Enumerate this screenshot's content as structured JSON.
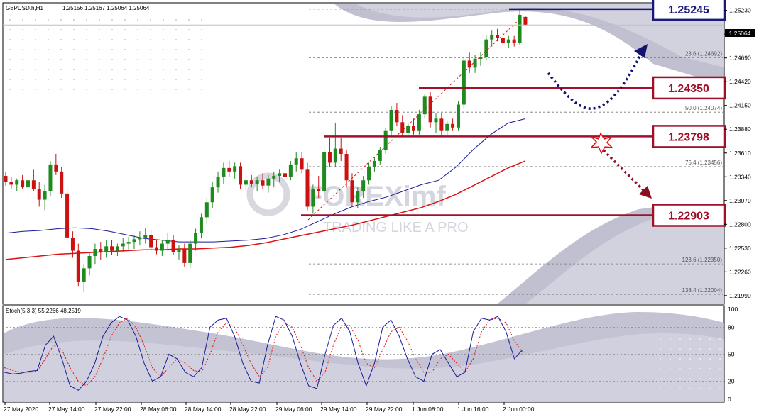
{
  "header": {
    "symbol": "GBPUSD.h,H1",
    "ohlc": "1.25156 1.25167 1.25064 1.25064"
  },
  "current_price_label": "1.25064",
  "watermark": {
    "brand": "FOREXimf",
    "slogan": "TRADING LIKE A PRO"
  },
  "levels": [
    {
      "name": "level-1-25245",
      "label": "1.25245",
      "price": 1.25245,
      "color": "#1a1a7a"
    },
    {
      "name": "level-1-24350",
      "label": "1.24350",
      "price": 1.2435,
      "color": "#a0102a"
    },
    {
      "name": "level-1-23798",
      "label": "1.23798",
      "price": 1.23798,
      "color": "#a0102a"
    },
    {
      "name": "level-1-22903",
      "label": "1.22903",
      "price": 1.22903,
      "color": "#a0102a"
    }
  ],
  "fibo": [
    {
      "label": "23.6 (1.24692)",
      "price": 1.24692
    },
    {
      "label": "50.0 (1.24074)",
      "price": 1.24074
    },
    {
      "label": "76.4 (1.23456)",
      "price": 1.23456
    },
    {
      "label": "123.6 (1.22350)",
      "price": 1.2235
    },
    {
      "label": "138.4 (1.22004)",
      "price": 1.22004
    }
  ],
  "stoch": {
    "title": "Stoch(5,3,3) 55.2266 48.2519",
    "levels": [
      "100",
      "80",
      "50",
      "20",
      "0"
    ]
  },
  "colors": {
    "bull": "#1f8a1f",
    "bear": "#cc1111",
    "ma_blue": "#1a1a9a",
    "ma_red": "#dd1111",
    "arrow_blue": "#14146e",
    "arrow_red": "#8a1020",
    "shade": "#b9b9cc"
  },
  "chart_data": {
    "type": "candlestick",
    "ylim": [
      1.219,
      1.253
    ],
    "y_ticks": [
      "1.25230",
      "1.24960",
      "1.24690",
      "1.24420",
      "1.24150",
      "1.23880",
      "1.23610",
      "1.23340",
      "1.23070",
      "1.22800",
      "1.22530",
      "1.22260",
      "1.21990"
    ],
    "x_ticks": [
      "27 May 2020",
      "27 May 14:00",
      "27 May 22:00",
      "28 May 06:00",
      "28 May 14:00",
      "28 May 22:00",
      "29 May 06:00",
      "29 May 14:00",
      "29 May 22:00",
      "1 Jun 08:00",
      "1 Jun 16:00",
      "2 Jun 00:00"
    ],
    "candles": [
      [
        1.2335,
        1.234,
        1.2324,
        1.2328
      ],
      [
        1.2328,
        1.2334,
        1.232,
        1.2325
      ],
      [
        1.2325,
        1.2332,
        1.2318,
        1.233
      ],
      [
        1.233,
        1.2336,
        1.232,
        1.2322
      ],
      [
        1.2322,
        1.2335,
        1.231,
        1.233
      ],
      [
        1.233,
        1.2342,
        1.2318,
        1.232
      ],
      [
        1.232,
        1.2328,
        1.23,
        1.2308
      ],
      [
        1.2308,
        1.2325,
        1.2296,
        1.2318
      ],
      [
        1.2318,
        1.2352,
        1.2312,
        1.2348
      ],
      [
        1.2348,
        1.236,
        1.2336,
        1.234
      ],
      [
        1.234,
        1.2345,
        1.231,
        1.2315
      ],
      [
        1.2315,
        1.2322,
        1.226,
        1.2265
      ],
      [
        1.2265,
        1.2272,
        1.2242,
        1.225
      ],
      [
        1.225,
        1.2258,
        1.221,
        1.2215
      ],
      [
        1.2215,
        1.2235,
        1.2203,
        1.223
      ],
      [
        1.223,
        1.2248,
        1.2222,
        1.2244
      ],
      [
        1.2244,
        1.2258,
        1.2235,
        1.2252
      ],
      [
        1.2252,
        1.226,
        1.224,
        1.2248
      ],
      [
        1.2248,
        1.2262,
        1.2242,
        1.2255
      ],
      [
        1.2255,
        1.2262,
        1.2245,
        1.225
      ],
      [
        1.225,
        1.2258,
        1.2244,
        1.2255
      ],
      [
        1.2255,
        1.2264,
        1.2248,
        1.2258
      ],
      [
        1.2258,
        1.2266,
        1.225,
        1.226
      ],
      [
        1.226,
        1.2268,
        1.2252,
        1.2263
      ],
      [
        1.2263,
        1.2272,
        1.2256,
        1.2265
      ],
      [
        1.2265,
        1.2276,
        1.2258,
        1.2268
      ],
      [
        1.2268,
        1.2274,
        1.225,
        1.2254
      ],
      [
        1.2254,
        1.2262,
        1.2246,
        1.225
      ],
      [
        1.225,
        1.2262,
        1.2244,
        1.2258
      ],
      [
        1.2258,
        1.227,
        1.225,
        1.2262
      ],
      [
        1.2262,
        1.2268,
        1.2245,
        1.2248
      ],
      [
        1.2248,
        1.2256,
        1.224,
        1.2252
      ],
      [
        1.2252,
        1.2258,
        1.2232,
        1.2236
      ],
      [
        1.2236,
        1.2262,
        1.223,
        1.2258
      ],
      [
        1.2258,
        1.2275,
        1.225,
        1.227
      ],
      [
        1.227,
        1.2292,
        1.2264,
        1.2288
      ],
      [
        1.2288,
        1.231,
        1.228,
        1.2305
      ],
      [
        1.2305,
        1.2328,
        1.2298,
        1.2322
      ],
      [
        1.2322,
        1.234,
        1.2316,
        1.2334
      ],
      [
        1.2334,
        1.235,
        1.2326,
        1.2344
      ],
      [
        1.2344,
        1.2352,
        1.2334,
        1.234
      ],
      [
        1.234,
        1.235,
        1.2332,
        1.2346
      ],
      [
        1.2346,
        1.235,
        1.232,
        1.2325
      ],
      [
        1.2325,
        1.2336,
        1.2318,
        1.233
      ],
      [
        1.233,
        1.2336,
        1.2322,
        1.2326
      ],
      [
        1.2326,
        1.2334,
        1.2318,
        1.233
      ],
      [
        1.233,
        1.2338,
        1.232,
        1.2324
      ],
      [
        1.2324,
        1.2336,
        1.2316,
        1.2332
      ],
      [
        1.2332,
        1.234,
        1.2322,
        1.2335
      ],
      [
        1.2335,
        1.2342,
        1.2328,
        1.2338
      ],
      [
        1.2338,
        1.2346,
        1.233,
        1.2334
      ],
      [
        1.2334,
        1.2352,
        1.233,
        1.2348
      ],
      [
        1.2348,
        1.2362,
        1.234,
        1.2355
      ],
      [
        1.2355,
        1.2362,
        1.2338,
        1.2342
      ],
      [
        1.2342,
        1.235,
        1.2296,
        1.23
      ],
      [
        1.23,
        1.2325,
        1.2292,
        1.232
      ],
      [
        1.232,
        1.2335,
        1.231,
        1.2318
      ],
      [
        1.2318,
        1.2368,
        1.2312,
        1.2362
      ],
      [
        1.2362,
        1.2378,
        1.2345,
        1.235
      ],
      [
        1.235,
        1.2395,
        1.2345,
        1.2366
      ],
      [
        1.2366,
        1.2378,
        1.2352,
        1.236
      ],
      [
        1.236,
        1.2365,
        1.2322,
        1.233
      ],
      [
        1.233,
        1.2338,
        1.23,
        1.2305
      ],
      [
        1.2305,
        1.2322,
        1.2298,
        1.2318
      ],
      [
        1.2318,
        1.2335,
        1.231,
        1.233
      ],
      [
        1.233,
        1.235,
        1.2325,
        1.2345
      ],
      [
        1.2345,
        1.2356,
        1.234,
        1.2352
      ],
      [
        1.2352,
        1.2368,
        1.2348,
        1.2364
      ],
      [
        1.2364,
        1.239,
        1.236,
        1.2386
      ],
      [
        1.2386,
        1.2414,
        1.238,
        1.241
      ],
      [
        1.241,
        1.2418,
        1.2392,
        1.2396
      ],
      [
        1.2396,
        1.2404,
        1.238,
        1.2384
      ],
      [
        1.2384,
        1.2396,
        1.2378,
        1.2392
      ],
      [
        1.2392,
        1.24,
        1.2382,
        1.2386
      ],
      [
        1.2386,
        1.241,
        1.2382,
        1.2405
      ],
      [
        1.2405,
        1.2428,
        1.24,
        1.2425
      ],
      [
        1.2425,
        1.243,
        1.239,
        1.2396
      ],
      [
        1.2396,
        1.2406,
        1.2384,
        1.24
      ],
      [
        1.24,
        1.2406,
        1.238,
        1.2386
      ],
      [
        1.2386,
        1.2398,
        1.238,
        1.2394
      ],
      [
        1.2394,
        1.24,
        1.2386,
        1.239
      ],
      [
        1.239,
        1.242,
        1.2386,
        1.2416
      ],
      [
        1.2416,
        1.247,
        1.2412,
        1.2466
      ],
      [
        1.2466,
        1.2475,
        1.2452,
        1.2458
      ],
      [
        1.2458,
        1.2472,
        1.2452,
        1.2468
      ],
      [
        1.2468,
        1.2476,
        1.246,
        1.247
      ],
      [
        1.247,
        1.2495,
        1.2466,
        1.249
      ],
      [
        1.249,
        1.25,
        1.2482,
        1.2495
      ],
      [
        1.2495,
        1.2502,
        1.2488,
        1.2492
      ],
      [
        1.2492,
        1.2498,
        1.2482,
        1.2486
      ],
      [
        1.2486,
        1.2494,
        1.248,
        1.249
      ],
      [
        1.249,
        1.2494,
        1.2482,
        1.2486
      ],
      [
        1.2486,
        1.2524,
        1.2484,
        1.2518
      ],
      [
        1.25156,
        1.25167,
        1.25064,
        1.25064
      ]
    ],
    "ma_blue": [
      1.227,
      1.2272,
      1.2273,
      1.2275,
      1.2276,
      1.2275,
      1.2272,
      1.2268,
      1.2264,
      1.2262,
      1.226,
      1.226,
      1.226,
      1.2261,
      1.2262,
      1.2264,
      1.2268,
      1.2274,
      1.2283,
      1.2292,
      1.23,
      1.2306,
      1.2311,
      1.2318,
      1.2325,
      1.233,
      1.2345,
      1.2365,
      1.2382,
      1.2395,
      1.24
    ],
    "ma_red": [
      1.224,
      1.2242,
      1.2244,
      1.2246,
      1.2247,
      1.2248,
      1.2249,
      1.225,
      1.2251,
      1.2251,
      1.2252,
      1.2252,
      1.2253,
      1.2254,
      1.2256,
      1.2259,
      1.2263,
      1.2267,
      1.2271,
      1.2275,
      1.2279,
      1.2284,
      1.2289,
      1.2294,
      1.2299,
      1.2306,
      1.2314,
      1.2324,
      1.2334,
      1.2344,
      1.2352
    ],
    "stoch_k": [
      30,
      28,
      29,
      31,
      32,
      60,
      70,
      45,
      15,
      10,
      20,
      40,
      70,
      85,
      92,
      88,
      70,
      40,
      20,
      25,
      50,
      45,
      30,
      25,
      35,
      80,
      88,
      90,
      70,
      40,
      20,
      18,
      60,
      92,
      88,
      70,
      40,
      15,
      12,
      50,
      82,
      90,
      75,
      40,
      15,
      40,
      80,
      88,
      70,
      45,
      25,
      20,
      50,
      55,
      40,
      25,
      30,
      75,
      90,
      88,
      92,
      75,
      45,
      55
    ],
    "stoch_d": [
      35,
      32,
      30,
      30,
      31,
      45,
      60,
      55,
      35,
      20,
      15,
      25,
      45,
      70,
      85,
      90,
      80,
      60,
      35,
      25,
      35,
      45,
      40,
      32,
      30,
      50,
      75,
      85,
      80,
      60,
      40,
      25,
      35,
      70,
      85,
      80,
      60,
      35,
      20,
      30,
      60,
      82,
      82,
      65,
      40,
      35,
      55,
      75,
      80,
      65,
      45,
      30,
      30,
      45,
      50,
      40,
      30,
      45,
      75,
      88,
      90,
      85,
      65,
      52
    ]
  }
}
